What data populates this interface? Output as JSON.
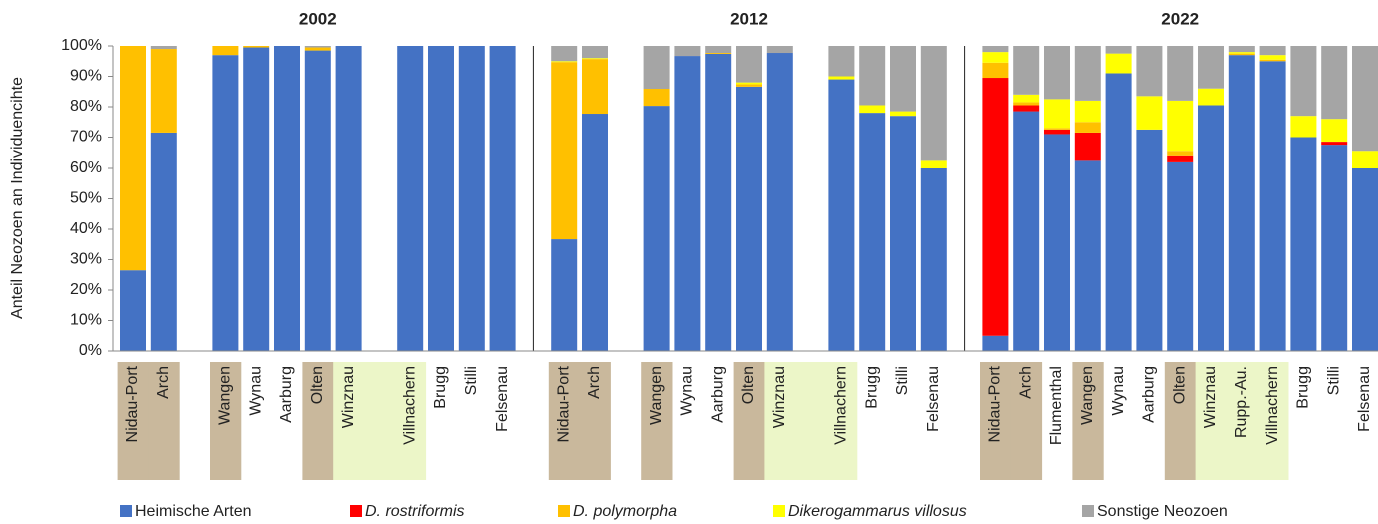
{
  "chart_data": [
    {
      "type": "bar",
      "stacked": true,
      "title": "2002",
      "y_label": "Anteil Neozoen an Individuencihte",
      "ylim": [
        0,
        100
      ],
      "yticks": [
        {
          "value": 0,
          "label": "0%"
        },
        {
          "value": 10,
          "label": "10%"
        },
        {
          "value": 20,
          "label": "20%"
        },
        {
          "value": 30,
          "label": "30%"
        },
        {
          "value": 40,
          "label": "40%"
        },
        {
          "value": 50,
          "label": "50%"
        },
        {
          "value": 60,
          "label": "60%"
        },
        {
          "value": 70,
          "label": "70%"
        },
        {
          "value": 80,
          "label": "80%"
        },
        {
          "value": 90,
          "label": "90%"
        },
        {
          "value": 100,
          "label": "100%"
        }
      ],
      "categories": [
        "Nidau-Port",
        "Arch",
        null,
        "Wangen",
        "Wynau",
        "Aarburg",
        "Olten",
        "Winznau",
        null,
        "Villnachern",
        "Brugg",
        "Stilli",
        "Felsenau"
      ],
      "category_colors": [
        "#c9b89c",
        "#c9b89c",
        null,
        "#c9b89c",
        null,
        null,
        "#c9b89c",
        "#ecf6c8",
        "#ecf6c8",
        "#ecf6c8",
        null,
        null,
        null
      ],
      "series": [
        {
          "name": "Heimische Arten",
          "italic": false,
          "color": "#4472c4",
          "values": [
            26.5,
            71.5,
            null,
            97,
            99.5,
            100,
            98.5,
            100,
            null,
            100,
            100,
            100,
            100
          ]
        },
        {
          "name": "D. rostriformis",
          "italic": true,
          "color": "#ff0000",
          "values": [
            0,
            0,
            null,
            0,
            0,
            0,
            0,
            0,
            null,
            0,
            0,
            0,
            0
          ]
        },
        {
          "name": "D. polymorpha",
          "italic": true,
          "color": "#ffc000",
          "values": [
            73.5,
            27.5,
            null,
            3,
            0.5,
            0,
            1,
            0,
            null,
            0,
            0,
            0,
            0
          ]
        },
        {
          "name": "Dikerogammarus villosus",
          "italic": true,
          "color": "#ffff00",
          "values": [
            0,
            0,
            null,
            0,
            0,
            0,
            0,
            0,
            null,
            0,
            0,
            0,
            0
          ]
        },
        {
          "name": "Sonstige Neozoen",
          "italic": false,
          "color": "#a5a5a5",
          "values": [
            0,
            1,
            null,
            0,
            0,
            0,
            0.5,
            0,
            null,
            0,
            0,
            0,
            0
          ]
        }
      ]
    },
    {
      "type": "bar",
      "stacked": true,
      "title": "2012",
      "categories": [
        "Nidau-Port",
        "Arch",
        null,
        "Wangen",
        "Wynau",
        "Aarburg",
        "Olten",
        "Winznau",
        null,
        "Villnachern",
        "Brugg",
        "Stilli",
        "Felsenau"
      ],
      "category_colors": [
        "#c9b89c",
        "#c9b89c",
        null,
        "#c9b89c",
        null,
        null,
        "#c9b89c",
        "#ecf6c8",
        "#ecf6c8",
        "#ecf6c8",
        null,
        null,
        null
      ],
      "series": [
        {
          "values": [
            36.7,
            77.7,
            null,
            80.3,
            96.7,
            97.4,
            86.6,
            97.7,
            null,
            89,
            78,
            77,
            60
          ]
        },
        {
          "values": [
            0,
            0,
            null,
            0,
            0,
            0,
            0,
            0,
            null,
            0,
            0,
            0,
            0
          ]
        },
        {
          "values": [
            58,
            18,
            null,
            5.6,
            0,
            0.3,
            0.8,
            0,
            null,
            0,
            0,
            0,
            0
          ]
        },
        {
          "values": [
            0.3,
            0.3,
            null,
            0,
            0,
            0,
            0.6,
            0,
            null,
            1,
            2.5,
            1.5,
            2.5
          ]
        },
        {
          "values": [
            5,
            4,
            null,
            14.1,
            3.3,
            2.3,
            12,
            2.3,
            null,
            10,
            19.5,
            21.5,
            37.5
          ]
        }
      ]
    },
    {
      "type": "bar",
      "stacked": true,
      "title": "2022",
      "categories": [
        "Nidau-Port",
        "Arch",
        "Flumenthal",
        "Wangen",
        "Wynau",
        "Aarburg",
        "Olten",
        "Winznau",
        "Rupp.-Au.",
        "Villnachern",
        "Brugg",
        "Stilli",
        "Felsenau"
      ],
      "category_colors": [
        "#c9b89c",
        "#c9b89c",
        null,
        "#c9b89c",
        null,
        null,
        "#c9b89c",
        "#ecf6c8",
        "#ecf6c8",
        "#ecf6c8",
        null,
        null,
        null
      ],
      "series": [
        {
          "values": [
            5,
            78.5,
            71,
            62.5,
            91,
            72.5,
            62,
            80.5,
            97,
            95,
            70,
            67.5,
            60
          ]
        },
        {
          "values": [
            84.5,
            2,
            1.5,
            9,
            0,
            0,
            2,
            0,
            0,
            0,
            0,
            1,
            0
          ]
        },
        {
          "values": [
            5,
            1,
            0.5,
            3.5,
            0,
            0,
            1.5,
            0,
            0.5,
            0.5,
            0,
            0,
            0
          ]
        },
        {
          "values": [
            3.5,
            2.5,
            9.5,
            7,
            6.5,
            11,
            16.5,
            5.5,
            0.5,
            1.5,
            7,
            7.5,
            5.5
          ]
        },
        {
          "values": [
            2,
            16,
            17.5,
            18,
            2.5,
            16.5,
            18,
            14,
            2,
            3,
            23,
            24,
            34.5
          ]
        }
      ]
    }
  ]
}
